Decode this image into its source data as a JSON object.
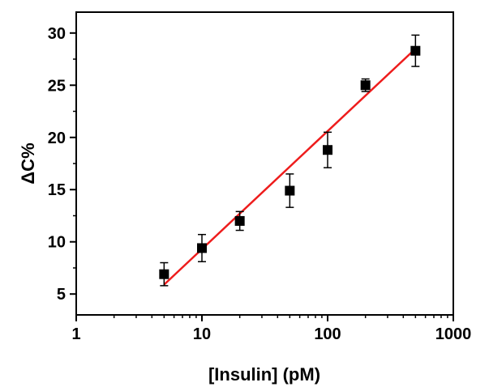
{
  "chart_data": {
    "type": "scatter",
    "xlabel": "[Insulin] (pM)",
    "ylabel": "ΔC%",
    "xscale": "log",
    "xlim": [
      1,
      1000
    ],
    "ylim": [
      3,
      32
    ],
    "x_ticks": [
      1,
      10,
      100,
      1000
    ],
    "x_tick_labels": [
      "1",
      "10",
      "100",
      "1000"
    ],
    "y_ticks": [
      5,
      10,
      15,
      20,
      25,
      30
    ],
    "y_tick_labels": [
      "5",
      "10",
      "15",
      "20",
      "25",
      "30"
    ],
    "grid": false,
    "series": [
      {
        "marker": "square",
        "color": "#000000",
        "x": [
          5,
          10,
          20,
          50,
          100,
          200,
          500
        ],
        "y": [
          6.9,
          9.4,
          12.0,
          14.9,
          18.8,
          25.0,
          28.3
        ],
        "error": [
          1.1,
          1.3,
          0.9,
          1.6,
          1.7,
          0.6,
          1.5
        ]
      }
    ],
    "fit_line": {
      "color": "#ee1c1c",
      "x": [
        5,
        500
      ],
      "y": [
        5.9,
        28.5
      ]
    }
  }
}
